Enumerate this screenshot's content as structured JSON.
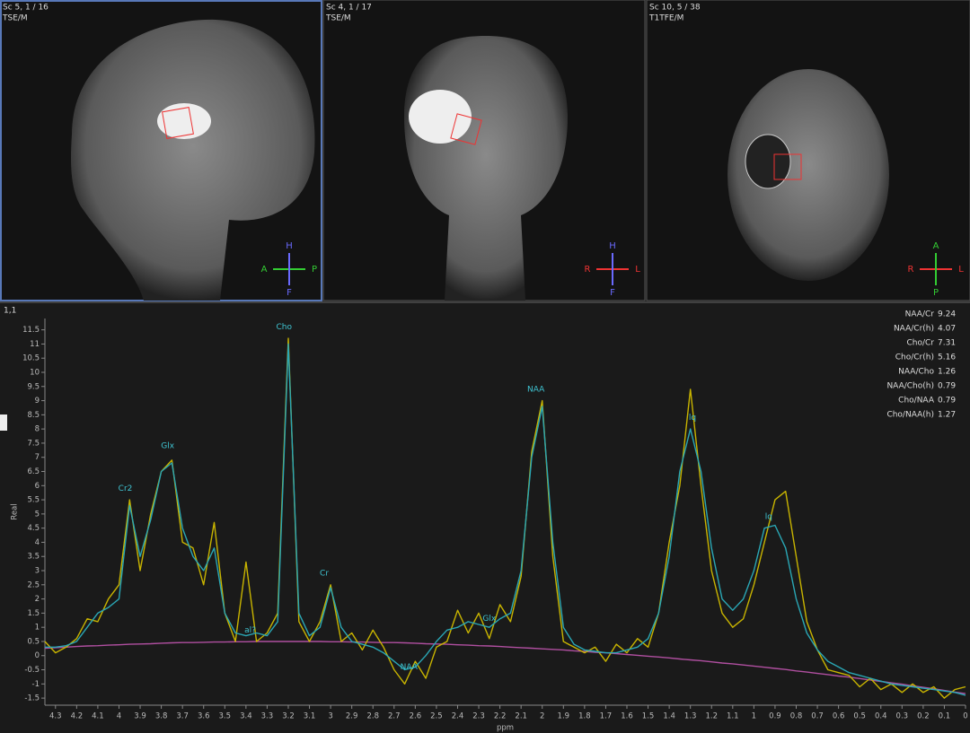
{
  "viewports": [
    {
      "label": "Sc 5, 1 / 16",
      "sequence": "TSE/M",
      "orientation": {
        "top": "H",
        "left": "A",
        "right": "P",
        "bottom": "F"
      }
    },
    {
      "label": "Sc 4, 1 / 17",
      "sequence": "TSE/M",
      "orientation": {
        "top": "H",
        "left": "R",
        "right": "L",
        "bottom": "F"
      }
    },
    {
      "label": "Sc 10, 5 / 38",
      "sequence": "T1TFE/M",
      "orientation": {
        "top": "A",
        "left": "R",
        "right": "L",
        "bottom": "P"
      }
    }
  ],
  "chart_data": {
    "type": "line",
    "panel_label": "1,1",
    "ylabel": "Real",
    "xlabel": "ppm",
    "x": [
      4.35,
      4.3,
      4.25,
      4.2,
      4.15,
      4.1,
      4.05,
      4,
      3.95,
      3.9,
      3.85,
      3.8,
      3.75,
      3.7,
      3.65,
      3.6,
      3.55,
      3.5,
      3.45,
      3.4,
      3.35,
      3.3,
      3.25,
      3.2,
      3.15,
      3.1,
      3.05,
      3,
      2.95,
      2.9,
      2.85,
      2.8,
      2.75,
      2.7,
      2.65,
      2.6,
      2.55,
      2.5,
      2.45,
      2.4,
      2.35,
      2.3,
      2.25,
      2.2,
      2.15,
      2.1,
      2.05,
      2,
      1.95,
      1.9,
      1.85,
      1.8,
      1.75,
      1.7,
      1.65,
      1.6,
      1.55,
      1.5,
      1.45,
      1.4,
      1.35,
      1.3,
      1.25,
      1.2,
      1.15,
      1.1,
      1.05,
      1,
      0.95,
      0.9,
      0.85,
      0.8,
      0.75,
      0.7,
      0.65,
      0.6,
      0.55,
      0.5,
      0.45,
      0.4,
      0.35,
      0.3,
      0.25,
      0.2,
      0.15,
      0.1,
      0.05,
      0
    ],
    "xlim": [
      4.35,
      0
    ],
    "xticks": [
      4.3,
      4.2,
      4.1,
      4,
      3.9,
      3.8,
      3.7,
      3.6,
      3.5,
      3.4,
      3.3,
      3.2,
      3.1,
      3,
      2.9,
      2.8,
      2.7,
      2.6,
      2.5,
      2.4,
      2.3,
      2.2,
      2.1,
      2,
      1.9,
      1.8,
      1.7,
      1.6,
      1.5,
      1.4,
      1.3,
      1.2,
      1.1,
      1,
      0.9,
      0.8,
      0.7,
      0.6,
      0.5,
      0.4,
      0.3,
      0.2,
      0.1,
      0
    ],
    "ylim": [
      -1.75,
      11.9
    ],
    "yticks": [
      11.5,
      11,
      10.5,
      10,
      9.5,
      9,
      8.5,
      8,
      7.5,
      7,
      6.5,
      6,
      5.5,
      5,
      4.5,
      4,
      3.5,
      3,
      2.5,
      2,
      1.5,
      1,
      0.5,
      0,
      -0.5,
      -1,
      -1.5
    ],
    "series": [
      {
        "color": "#b04fa0",
        "values": [
          0.26,
          0.28,
          0.3,
          0.32,
          0.34,
          0.35,
          0.37,
          0.38,
          0.4,
          0.41,
          0.42,
          0.44,
          0.45,
          0.46,
          0.46,
          0.47,
          0.48,
          0.48,
          0.49,
          0.49,
          0.5,
          0.5,
          0.5,
          0.5,
          0.5,
          0.5,
          0.5,
          0.49,
          0.49,
          0.48,
          0.48,
          0.47,
          0.46,
          0.46,
          0.45,
          0.44,
          0.42,
          0.41,
          0.4,
          0.38,
          0.37,
          0.35,
          0.34,
          0.32,
          0.3,
          0.28,
          0.26,
          0.24,
          0.22,
          0.2,
          0.17,
          0.15,
          0.12,
          0.1,
          0.07,
          0.04,
          0.01,
          -0.02,
          -0.05,
          -0.08,
          -0.12,
          -0.15,
          -0.18,
          -0.22,
          -0.26,
          -0.29,
          -0.33,
          -0.37,
          -0.41,
          -0.45,
          -0.49,
          -0.54,
          -0.58,
          -0.63,
          -0.67,
          -0.72,
          -0.76,
          -0.81,
          -0.86,
          -0.91,
          -0.96,
          -1.01,
          -1.07,
          -1.12,
          -1.17,
          -1.23,
          -1.29,
          -1.34
        ]
      },
      {
        "color": "#c8b400",
        "values": [
          0.5,
          0.1,
          0.3,
          0.6,
          1.3,
          1.2,
          2,
          2.5,
          5.5,
          3,
          5,
          6.5,
          6.9,
          4,
          3.8,
          2.5,
          4.7,
          1.5,
          0.5,
          3.3,
          0.5,
          0.8,
          1.5,
          11.2,
          1.2,
          0.5,
          1.2,
          2.5,
          0.5,
          0.8,
          0.2,
          0.9,
          0.3,
          -0.5,
          -1,
          -0.2,
          -0.8,
          0.3,
          0.5,
          1.6,
          0.8,
          1.5,
          0.6,
          1.8,
          1.2,
          2.8,
          7.2,
          9,
          3.5,
          0.5,
          0.3,
          0.1,
          0.3,
          -0.2,
          0.4,
          0.1,
          0.6,
          0.3,
          1.5,
          4,
          6,
          9.4,
          6,
          3,
          1.5,
          1,
          1.3,
          2.5,
          4,
          5.5,
          5.8,
          3.5,
          1.2,
          0.2,
          -0.5,
          -0.6,
          -0.7,
          -1.1,
          -0.8,
          -1.2,
          -1,
          -1.3,
          -1,
          -1.3,
          -1.1,
          -1.5,
          -1.2,
          -1.1
        ]
      },
      {
        "color": "#2aa7b5",
        "values": [
          0.3,
          0.3,
          0.35,
          0.5,
          1,
          1.5,
          1.7,
          2,
          5.3,
          3.5,
          4.8,
          6.5,
          6.8,
          4.5,
          3.5,
          3,
          3.8,
          1.5,
          0.8,
          0.7,
          0.8,
          0.7,
          1.2,
          11,
          1.5,
          0.7,
          1,
          2.4,
          1,
          0.5,
          0.4,
          0.3,
          0.1,
          -0.2,
          -0.5,
          -0.4,
          0,
          0.5,
          0.9,
          1,
          1.2,
          1.1,
          1,
          1.3,
          1.5,
          3,
          7,
          8.8,
          4,
          1,
          0.4,
          0.2,
          0.15,
          0.1,
          0.1,
          0.2,
          0.3,
          0.6,
          1.5,
          3.5,
          6.5,
          8,
          6.5,
          3.8,
          2,
          1.6,
          2,
          3,
          4.5,
          4.6,
          3.8,
          2,
          0.8,
          0.2,
          -0.2,
          -0.4,
          -0.6,
          -0.7,
          -0.8,
          -0.9,
          -1,
          -1.05,
          -1.1,
          -1.15,
          -1.2,
          -1.25,
          -1.3,
          -1.4
        ]
      }
    ],
    "annotations": [
      {
        "text": "Cr2",
        "x": 3.97,
        "y": 5.9
      },
      {
        "text": "Glx",
        "x": 3.77,
        "y": 7.4
      },
      {
        "text": "Cho",
        "x": 3.22,
        "y": 11.6
      },
      {
        "text": "Cr",
        "x": 3.03,
        "y": 2.9
      },
      {
        "text": "al?",
        "x": 3.38,
        "y": 0.9
      },
      {
        "text": "NAA",
        "x": 2.03,
        "y": 9.4
      },
      {
        "text": "NAA",
        "x": 2.63,
        "y": -0.4
      },
      {
        "text": "Glx",
        "x": 2.25,
        "y": 1.3
      },
      {
        "text": "lq",
        "x": 1.29,
        "y": 8.4
      },
      {
        "text": "lq",
        "x": 0.93,
        "y": 4.9
      }
    ],
    "ratios": [
      {
        "name": "NAA/Cr",
        "value": 9.24
      },
      {
        "name": "NAA/Cr(h)",
        "value": 4.07
      },
      {
        "name": "Cho/Cr",
        "value": 7.31
      },
      {
        "name": "Cho/Cr(h)",
        "value": 5.16
      },
      {
        "name": "NAA/Cho",
        "value": 1.26
      },
      {
        "name": "NAA/Cho(h)",
        "value": 0.79
      },
      {
        "name": "Cho/NAA",
        "value": 0.79
      },
      {
        "name": "Cho/NAA(h)",
        "value": 1.27
      }
    ]
  }
}
